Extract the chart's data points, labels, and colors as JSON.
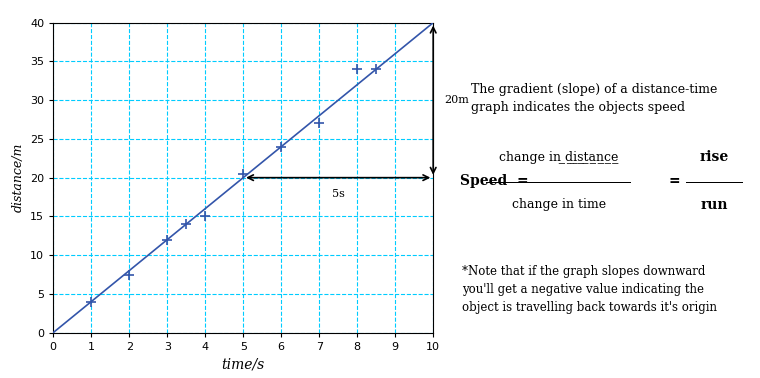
{
  "line_x": [
    0,
    1,
    2,
    3,
    3.5,
    4,
    5,
    6,
    7,
    8,
    8.5,
    9,
    10
  ],
  "line_y": [
    0,
    4,
    8,
    12,
    14,
    16,
    20,
    24,
    28,
    32,
    34,
    36,
    40
  ],
  "scatter_x": [
    1,
    2,
    3,
    3.5,
    4,
    5,
    6,
    7,
    8,
    8.5
  ],
  "scatter_y": [
    4,
    7.5,
    12,
    14,
    15,
    20.5,
    24,
    27,
    34,
    34
  ],
  "line_color": "#3355aa",
  "scatter_color": "#3355aa",
  "grid_color": "#00ccff",
  "xlabel": "time/s",
  "ylabel": "distance/m",
  "xlim": [
    0,
    10
  ],
  "ylim": [
    0,
    40
  ],
  "xticks": [
    0,
    1,
    2,
    3,
    4,
    5,
    6,
    7,
    8,
    9,
    10
  ],
  "yticks": [
    0,
    5,
    10,
    15,
    20,
    25,
    30,
    35,
    40
  ],
  "rise_label": "20m",
  "run_label": "5s",
  "rise_x1": 10,
  "rise_y1": 20,
  "rise_y2": 40,
  "run_x1": 5,
  "run_x2": 10,
  "run_y": 20,
  "text1": "The gradient (slope) of a distance-time\ngraph indicates the objects speed",
  "text2_speed": "Speed  = ",
  "text2_num": "change in distance",
  "text2_den": "change in time",
  "text2_eq2": " =  ",
  "text2_rise": "rise",
  "text2_run": "run",
  "text3": "*Note that if the graph slopes downward\nyou'll get a negative value indicating the\nobject is travelling back towards it's origin",
  "fig_bg": "#ffffff",
  "ax_bg": "#ffffff"
}
